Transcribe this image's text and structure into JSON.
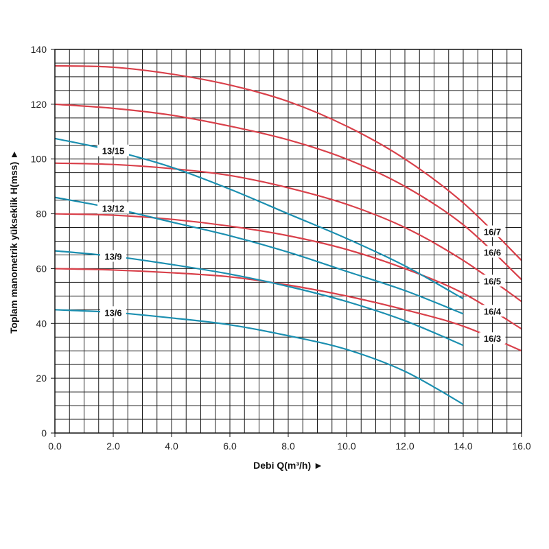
{
  "chart_data": {
    "type": "line",
    "xlabel": "Debi Q(m³/h) ►",
    "ylabel": "Toplam manometrik yükseklik H(mss) ►",
    "xlim": [
      0,
      16
    ],
    "ylim": [
      0,
      140
    ],
    "x_ticks": [
      "0.0",
      "2.0",
      "4.0",
      "6.0",
      "8.0",
      "10.0",
      "12.0",
      "14.0",
      "16.0"
    ],
    "y_ticks": [
      "0",
      "20",
      "40",
      "60",
      "80",
      "100",
      "120",
      "140"
    ],
    "grid": true,
    "colors": {
      "red_series": "#d9404a",
      "blue_series": "#1b8fb0",
      "grid": "#1a1a1a"
    },
    "series": [
      {
        "name": "16/7",
        "color": "red",
        "x": [
          0,
          2,
          4,
          6,
          8,
          10,
          12,
          14,
          16
        ],
        "y": [
          134,
          133.5,
          131,
          127,
          121,
          112,
          100,
          84,
          63
        ]
      },
      {
        "name": "16/6",
        "color": "red",
        "x": [
          0,
          2,
          4,
          6,
          8,
          10,
          12,
          14,
          16
        ],
        "y": [
          120,
          118.5,
          116,
          112,
          107,
          100,
          90,
          76,
          56
        ]
      },
      {
        "name": "16/5",
        "color": "red",
        "x": [
          0,
          2,
          4,
          6,
          8,
          10,
          12,
          14,
          16
        ],
        "y": [
          98.5,
          98,
          96.5,
          94,
          89.5,
          83.5,
          75,
          63,
          48
        ]
      },
      {
        "name": "16/4",
        "color": "red",
        "x": [
          0,
          2,
          4,
          6,
          8,
          10,
          12,
          14,
          16
        ],
        "y": [
          80,
          79.5,
          78,
          75.5,
          72,
          67,
          60,
          51,
          38
        ]
      },
      {
        "name": "16/3",
        "color": "red",
        "x": [
          0,
          2,
          4,
          6,
          8,
          10,
          12,
          14,
          16
        ],
        "y": [
          60,
          59.5,
          58.5,
          57,
          54,
          50,
          45,
          39,
          30
        ]
      },
      {
        "name": "13/15",
        "color": "blue",
        "x": [
          0,
          2,
          4,
          6,
          8,
          10,
          12,
          14
        ],
        "y": [
          107.5,
          103,
          97,
          89,
          80,
          71,
          61,
          49
        ]
      },
      {
        "name": "13/12",
        "color": "blue",
        "x": [
          0,
          2,
          4,
          6,
          8,
          10,
          12,
          14
        ],
        "y": [
          86,
          82,
          77,
          72,
          66,
          59,
          52,
          43.5
        ]
      },
      {
        "name": "13/9",
        "color": "blue",
        "x": [
          0,
          2,
          4,
          6,
          8,
          10,
          12,
          14
        ],
        "y": [
          66.5,
          64.5,
          61.5,
          58,
          53.5,
          48,
          41,
          32
        ]
      },
      {
        "name": "13/6",
        "color": "blue",
        "x": [
          0,
          2,
          4,
          6,
          8,
          10,
          12,
          14
        ],
        "y": [
          45,
          44,
          42,
          39.5,
          35.5,
          30.5,
          22.5,
          10.5
        ]
      }
    ]
  }
}
